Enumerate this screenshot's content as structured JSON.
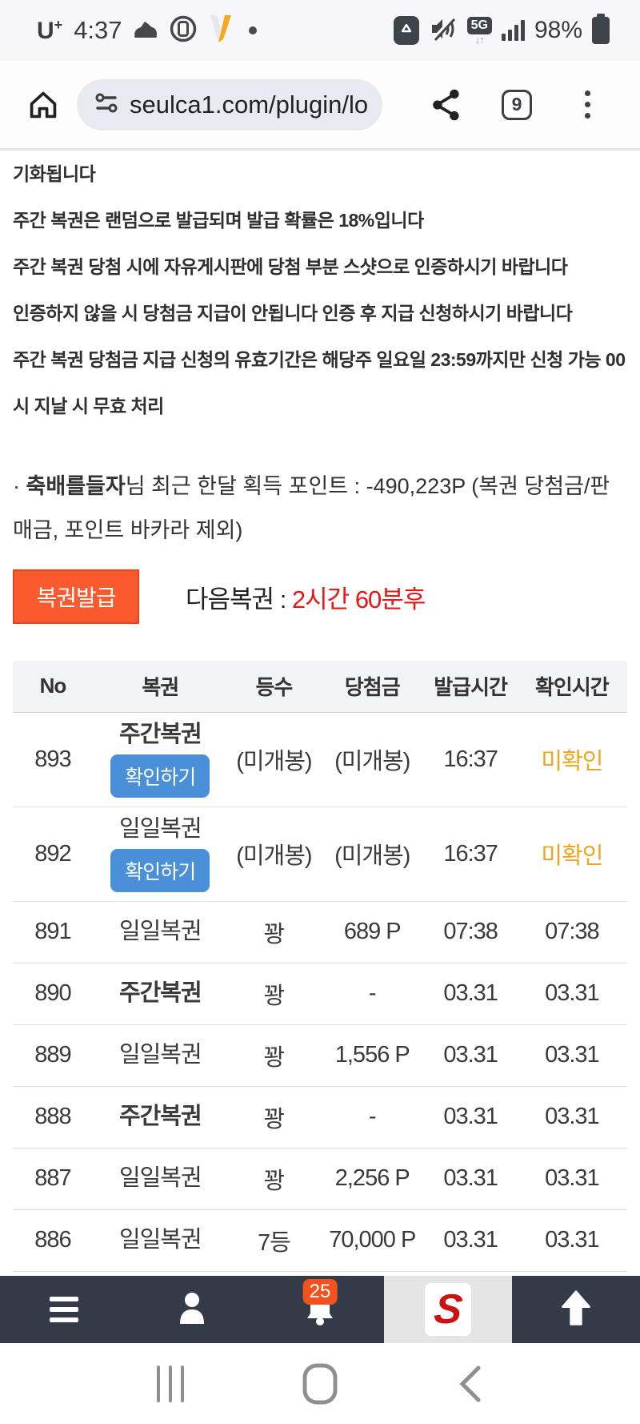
{
  "colors": {
    "accent_orange": "#fa5a2e",
    "accent_orange_border": "#e8441a",
    "countdown_red": "#ea1515",
    "check_button_blue": "#4a90d9",
    "unchecked_amber": "#f0a51f",
    "bottom_nav_bg": "#333b48",
    "badge_orange": "#f4511e",
    "logo_red": "#cc1111",
    "table_header_bg": "#f2f3f5"
  },
  "status_bar": {
    "carrier": "U",
    "carrier_plus": "+",
    "time": "4:37",
    "network": "5G",
    "battery_percent": "98%"
  },
  "browser": {
    "url": "seulca1.com/plugin/lo",
    "tab_count": "9"
  },
  "notices": [
    "기화됩니다",
    "주간 복권은 랜덤으로 발급되며 발급 확률은 18%입니다",
    "주간 복권 당첨 시에 자유게시판에 당첨 부분 스샷으로 인증하시기 바랍니다",
    "인증하지 않을 시 당첨금 지급이 안됩니다 인증 후 지급 신청하시기 바랍니다",
    "주간 복권 당첨금 지급 신청의 유효기간은 해당주 일요일 23:59까지만 신청 가능 00시 지날 시 무효 처리"
  ],
  "point_summary": {
    "bullet": "·",
    "username": "축배를들자",
    "text_after_name": "님 최근 한달 획득 포인트 : -490,223P (복권 당첨금/판매금, 포인트 바카라 제외)"
  },
  "issue": {
    "button_label": "복권발급",
    "next_label": "다음복권 : ",
    "next_value": "2시간 60분후"
  },
  "table": {
    "headers": [
      "No",
      "복권",
      "등수",
      "당첨금",
      "발급시간",
      "확인시간"
    ],
    "check_button_label": "확인하기",
    "rows": [
      {
        "no": "893",
        "lottery": "주간복권",
        "bold": true,
        "has_check_button": true,
        "rank": "(미개봉)",
        "prize": "(미개봉)",
        "issued": "16:37",
        "checked": "미확인",
        "unchecked": true
      },
      {
        "no": "892",
        "lottery": "일일복권",
        "bold": false,
        "has_check_button": true,
        "rank": "(미개봉)",
        "prize": "(미개봉)",
        "issued": "16:37",
        "checked": "미확인",
        "unchecked": true
      },
      {
        "no": "891",
        "lottery": "일일복권",
        "bold": false,
        "has_check_button": false,
        "rank": "꽝",
        "prize": "689 P",
        "issued": "07:38",
        "checked": "07:38",
        "unchecked": false
      },
      {
        "no": "890",
        "lottery": "주간복권",
        "bold": true,
        "has_check_button": false,
        "rank": "꽝",
        "prize": "-",
        "issued": "03.31",
        "checked": "03.31",
        "unchecked": false
      },
      {
        "no": "889",
        "lottery": "일일복권",
        "bold": false,
        "has_check_button": false,
        "rank": "꽝",
        "prize": "1,556 P",
        "issued": "03.31",
        "checked": "03.31",
        "unchecked": false
      },
      {
        "no": "888",
        "lottery": "주간복권",
        "bold": true,
        "has_check_button": false,
        "rank": "꽝",
        "prize": "-",
        "issued": "03.31",
        "checked": "03.31",
        "unchecked": false
      },
      {
        "no": "887",
        "lottery": "일일복권",
        "bold": false,
        "has_check_button": false,
        "rank": "꽝",
        "prize": "2,256 P",
        "issued": "03.31",
        "checked": "03.31",
        "unchecked": false
      },
      {
        "no": "886",
        "lottery": "일일복권",
        "bold": false,
        "has_check_button": false,
        "rank": "7등",
        "prize": "70,000 P",
        "issued": "03.31",
        "checked": "03.31",
        "unchecked": false
      }
    ]
  },
  "bottom_nav": {
    "badge_count": "25",
    "logo_letter": "S"
  }
}
